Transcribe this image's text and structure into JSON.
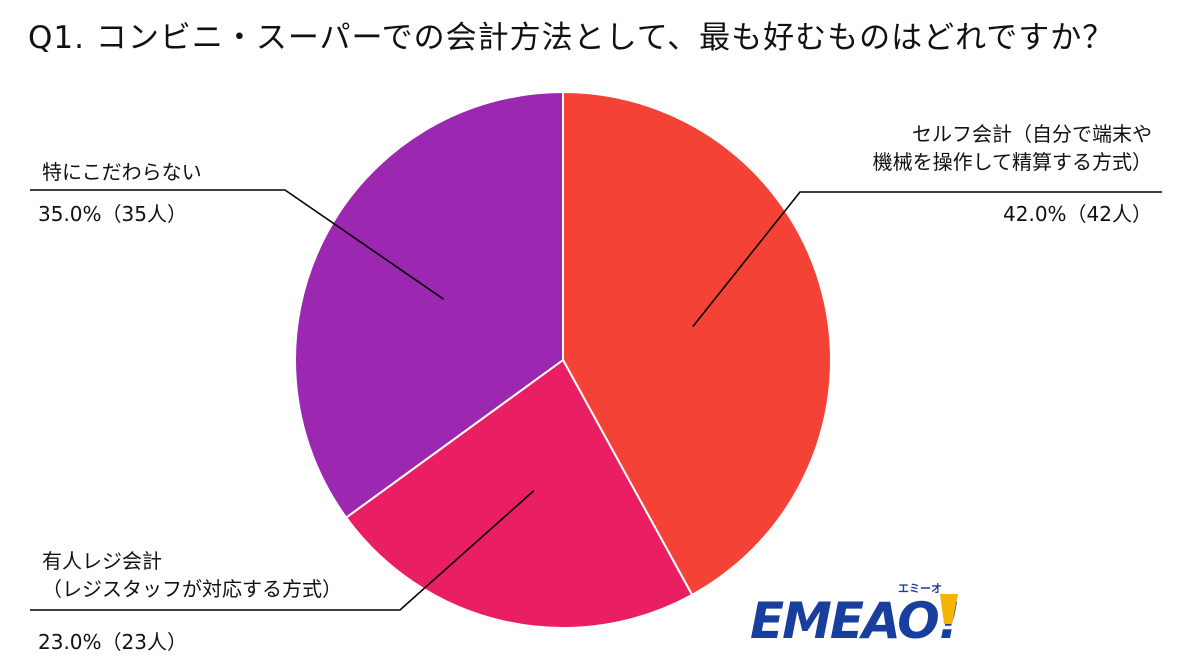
{
  "title": "Q1. コンビニ・スーパーでの会計方法として、最も好むものはどれですか？",
  "chart_data": {
    "type": "pie",
    "start_angle_deg": 0,
    "direction": "clockwise",
    "slices": [
      {
        "label_lines": [
          "セルフ会計（自分で端末や",
          "機械を操作して精算する方式）"
        ],
        "value_label": "42.0%（42人）",
        "percent": 42.0,
        "count": 42,
        "color": "#F44336"
      },
      {
        "label_lines": [
          "有人レジ会計",
          "（レジスタッフが対応する方式）"
        ],
        "value_label": "23.0%（23人）",
        "percent": 23.0,
        "count": 23,
        "color": "#E91E63"
      },
      {
        "label_lines": [
          "特にこだわらない"
        ],
        "value_label": "35.0%（35人）",
        "percent": 35.0,
        "count": 35,
        "color": "#9C27B0"
      }
    ]
  },
  "logo": {
    "text": "EMEAO!",
    "kana": "エミーオ",
    "color": "#1A3E9E",
    "accent": "#F5B400"
  }
}
